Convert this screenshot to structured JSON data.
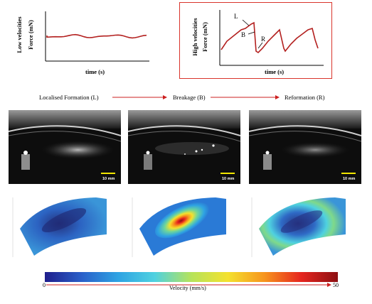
{
  "low_panel": {
    "title": "Low velocities",
    "ylabel": "Force (mN)",
    "xlabel": "time (s)"
  },
  "high_panel": {
    "title": "High velocities",
    "ylabel": "Force (mN)",
    "xlabel": "time (s)",
    "markers": [
      "L",
      "B",
      "R"
    ],
    "border_color": "#d9342b"
  },
  "stages": [
    "Localised Formation (L)",
    "Breakage (B)",
    "Reformation (R)"
  ],
  "arrow_color": "#cc1f1f",
  "trace_color": "#b3201f",
  "photos": [
    {
      "scale_label": "10 mm"
    },
    {
      "scale_label": "10 mm"
    },
    {
      "scale_label": "10 mm"
    }
  ],
  "colorbar": {
    "label": "Velocity (mm/s)",
    "min_label": "0",
    "max_label": "50",
    "colors": [
      "#1f1e8c",
      "#2a5fc9",
      "#2ea3e3",
      "#4fd1e0",
      "#b6e35a",
      "#f4e12e",
      "#f7941d",
      "#e6251f",
      "#8c0f12"
    ]
  }
}
